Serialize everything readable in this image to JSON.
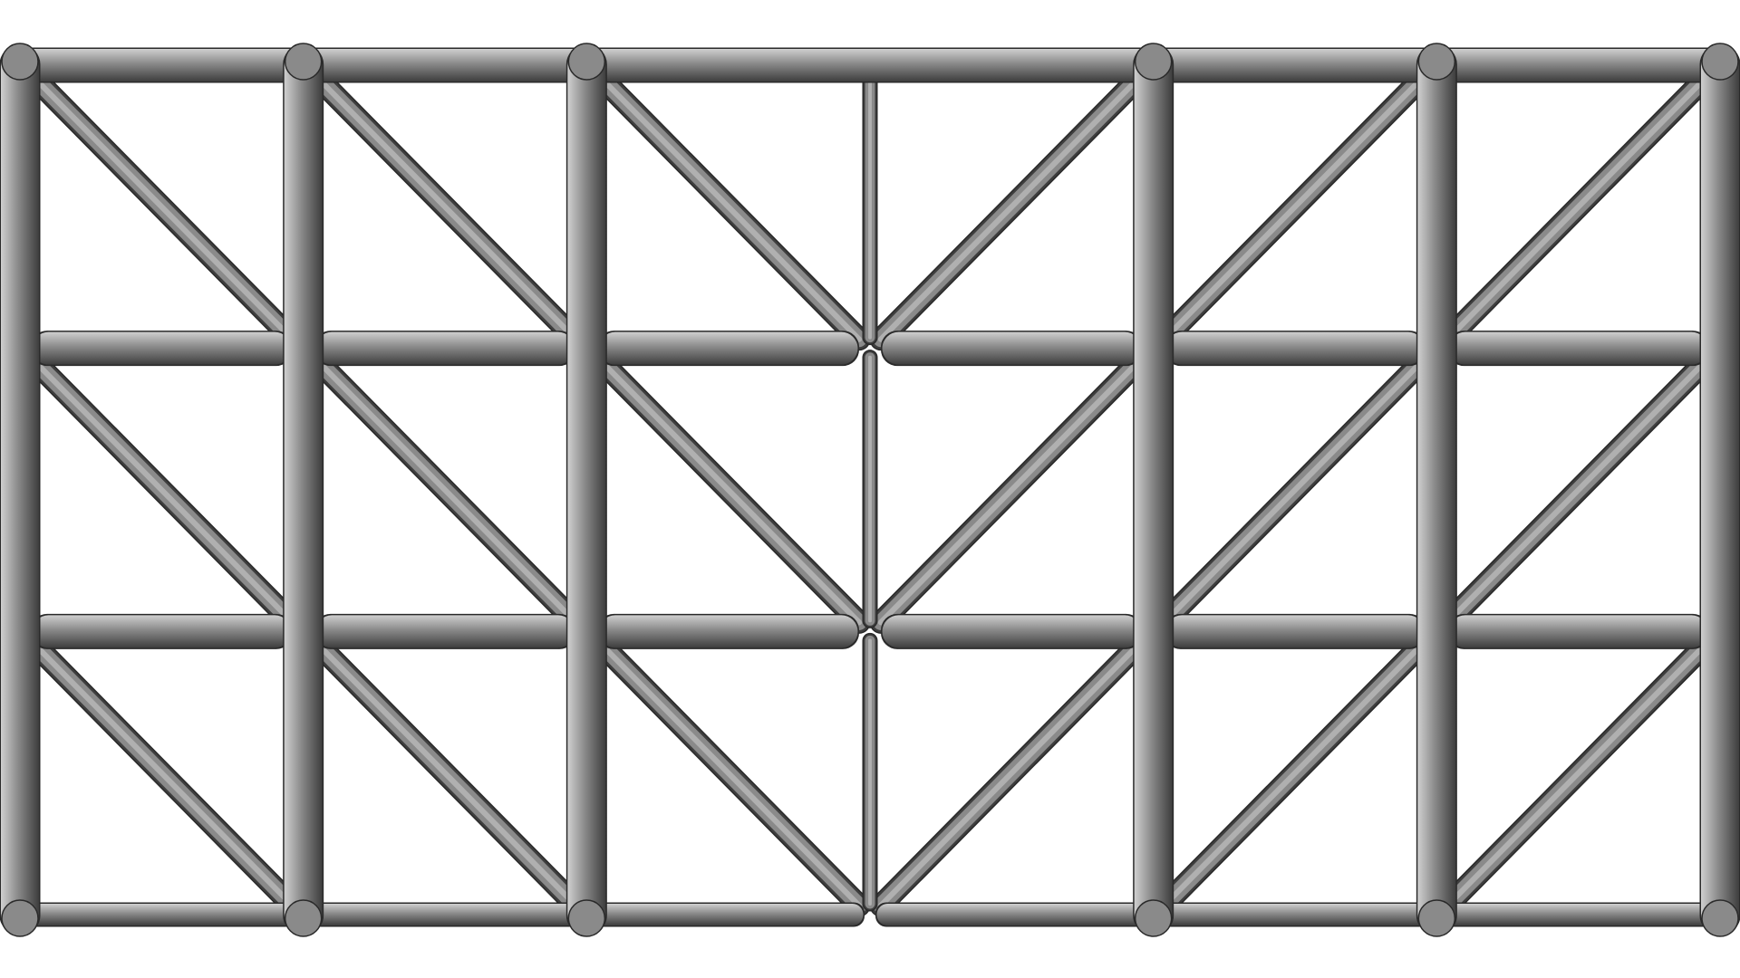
{
  "diagram": {
    "kind": "truss-lattice",
    "grid": {
      "columns": 6,
      "rows": 3
    },
    "colors": {
      "background": "#ffffff",
      "member_light": "#cfcfcf",
      "member_mid": "#8a8a8a",
      "member_dark": "#3e3e3e",
      "outline": "#2a2a2a"
    },
    "column_lines": [
      {
        "index": 0,
        "type": "thick"
      },
      {
        "index": 1,
        "type": "thick"
      },
      {
        "index": 2,
        "type": "thick"
      },
      {
        "index": 3,
        "type": "thin"
      },
      {
        "index": 4,
        "type": "thick"
      },
      {
        "index": 5,
        "type": "thick"
      },
      {
        "index": 6,
        "type": "thick"
      }
    ],
    "row_lines": [
      {
        "index": 0,
        "type": "chord-top"
      },
      {
        "index": 1,
        "type": "chord-mid"
      },
      {
        "index": 2,
        "type": "chord-mid"
      },
      {
        "index": 3,
        "type": "chord-bottom"
      }
    ],
    "bracing": [
      {
        "col": 0,
        "pattern": "down-right"
      },
      {
        "col": 1,
        "pattern": "down-right"
      },
      {
        "col": 2,
        "pattern": "down-right"
      },
      {
        "col": 3,
        "pattern": "down-left"
      },
      {
        "col": 4,
        "pattern": "down-left"
      },
      {
        "col": 5,
        "pattern": "down-left"
      }
    ]
  }
}
